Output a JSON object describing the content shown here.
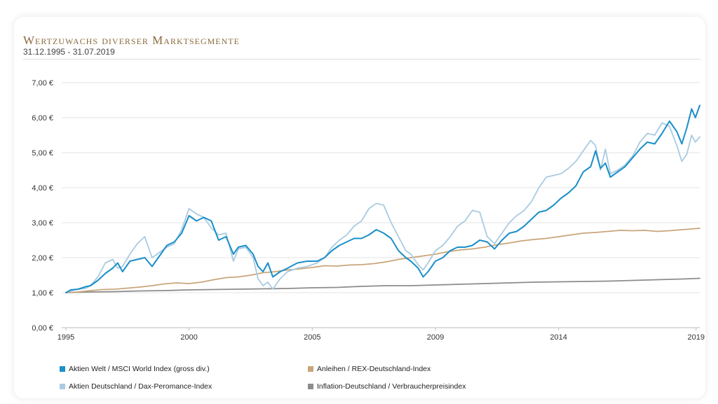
{
  "title": "Wertzuwachs diverser Marktsegmente",
  "subtitle": "31.12.1995 - 31.07.2019",
  "chart_data": {
    "type": "line",
    "x_tick_labels": [
      "1995",
      "2000",
      "2005",
      "2009",
      "2014",
      "2019"
    ],
    "x_tick_positions": [
      1996.0,
      2001.0,
      2006.0,
      2011.0,
      2016.0,
      2021.58
    ],
    "xlim": [
      1995.83,
      2021.73
    ],
    "y_tick_labels": [
      "0,00 €",
      "1,00 €",
      "2,00 €",
      "3,00 €",
      "4,00 €",
      "5,00 €",
      "6,00 €",
      "7,00 €"
    ],
    "ylim": [
      0,
      7
    ],
    "grid": true,
    "legend_position": "bottom",
    "series": [
      {
        "name": "Aktien Welt / MSCI World Index (gross div.)",
        "color": "#1a8fc9",
        "points": [
          [
            1996.0,
            1.0
          ],
          [
            1996.2,
            1.08
          ],
          [
            1996.5,
            1.1
          ],
          [
            1996.8,
            1.17
          ],
          [
            1997.0,
            1.2
          ],
          [
            1997.3,
            1.35
          ],
          [
            1997.6,
            1.55
          ],
          [
            1997.9,
            1.7
          ],
          [
            1998.1,
            1.85
          ],
          [
            1998.3,
            1.6
          ],
          [
            1998.6,
            1.9
          ],
          [
            1998.9,
            1.95
          ],
          [
            1999.2,
            2.0
          ],
          [
            1999.5,
            1.75
          ],
          [
            1999.8,
            2.05
          ],
          [
            2000.1,
            2.35
          ],
          [
            2000.4,
            2.45
          ],
          [
            2000.7,
            2.7
          ],
          [
            2001.0,
            3.2
          ],
          [
            2001.3,
            3.05
          ],
          [
            2001.6,
            3.15
          ],
          [
            2001.9,
            3.05
          ],
          [
            2002.2,
            2.5
          ],
          [
            2002.5,
            2.6
          ],
          [
            2002.8,
            2.1
          ],
          [
            2003.0,
            2.3
          ],
          [
            2003.3,
            2.35
          ],
          [
            2003.6,
            2.1
          ],
          [
            2003.8,
            1.75
          ],
          [
            2004.0,
            1.6
          ],
          [
            2004.2,
            1.85
          ],
          [
            2004.4,
            1.45
          ],
          [
            2004.7,
            1.6
          ],
          [
            2005.0,
            1.7
          ],
          [
            2005.4,
            1.85
          ],
          [
            2005.8,
            1.9
          ],
          [
            2006.2,
            1.9
          ],
          [
            2006.5,
            2.0
          ],
          [
            2006.8,
            2.2
          ],
          [
            2007.1,
            2.35
          ],
          [
            2007.4,
            2.45
          ],
          [
            2007.7,
            2.55
          ],
          [
            2008.0,
            2.55
          ],
          [
            2008.3,
            2.65
          ],
          [
            2008.6,
            2.8
          ],
          [
            2008.9,
            2.7
          ],
          [
            2009.2,
            2.55
          ],
          [
            2009.5,
            2.2
          ],
          [
            2009.8,
            2.0
          ],
          [
            2010.0,
            1.9
          ],
          [
            2010.3,
            1.7
          ],
          [
            2010.5,
            1.45
          ],
          [
            2010.7,
            1.6
          ],
          [
            2011.0,
            1.9
          ],
          [
            2011.3,
            2.0
          ],
          [
            2011.6,
            2.2
          ],
          [
            2011.9,
            2.3
          ],
          [
            2012.2,
            2.3
          ],
          [
            2012.5,
            2.35
          ],
          [
            2012.8,
            2.5
          ],
          [
            2013.1,
            2.45
          ],
          [
            2013.4,
            2.25
          ],
          [
            2013.7,
            2.5
          ],
          [
            2014.0,
            2.7
          ],
          [
            2014.3,
            2.75
          ],
          [
            2014.6,
            2.9
          ],
          [
            2014.9,
            3.1
          ],
          [
            2015.2,
            3.3
          ],
          [
            2015.5,
            3.35
          ],
          [
            2015.8,
            3.5
          ],
          [
            2016.1,
            3.7
          ],
          [
            2016.4,
            3.85
          ],
          [
            2016.7,
            4.05
          ],
          [
            2017.0,
            4.45
          ],
          [
            2017.3,
            4.6
          ],
          [
            2017.5,
            5.05
          ],
          [
            2017.7,
            4.55
          ],
          [
            2017.9,
            4.7
          ],
          [
            2018.1,
            4.3
          ],
          [
            2018.4,
            4.45
          ],
          [
            2018.7,
            4.6
          ],
          [
            2019.0,
            4.85
          ],
          [
            2019.3,
            5.1
          ],
          [
            2019.6,
            5.3
          ],
          [
            2019.9,
            5.25
          ],
          [
            2020.2,
            5.55
          ],
          [
            2020.5,
            5.9
          ],
          [
            2020.8,
            5.6
          ],
          [
            2021.0,
            5.25
          ],
          [
            2021.2,
            5.7
          ],
          [
            2021.4,
            6.25
          ],
          [
            2021.55,
            6.0
          ],
          [
            2021.73,
            6.35
          ]
        ]
      },
      {
        "name": "Aktien Deutschland / Dax-Peromance-Index",
        "color": "#a9cbe1",
        "points": [
          [
            1996.0,
            1.0
          ],
          [
            1996.2,
            1.05
          ],
          [
            1996.5,
            1.1
          ],
          [
            1996.8,
            1.12
          ],
          [
            1997.0,
            1.2
          ],
          [
            1997.3,
            1.45
          ],
          [
            1997.6,
            1.85
          ],
          [
            1997.9,
            1.95
          ],
          [
            1998.1,
            1.7
          ],
          [
            1998.3,
            1.75
          ],
          [
            1998.6,
            2.1
          ],
          [
            1998.9,
            2.4
          ],
          [
            1999.2,
            2.6
          ],
          [
            1999.5,
            2.0
          ],
          [
            1999.8,
            2.15
          ],
          [
            2000.1,
            2.3
          ],
          [
            2000.4,
            2.4
          ],
          [
            2000.7,
            2.8
          ],
          [
            2001.0,
            3.4
          ],
          [
            2001.3,
            3.25
          ],
          [
            2001.6,
            3.15
          ],
          [
            2001.9,
            2.85
          ],
          [
            2002.2,
            2.65
          ],
          [
            2002.5,
            2.7
          ],
          [
            2002.8,
            1.9
          ],
          [
            2003.0,
            2.25
          ],
          [
            2003.3,
            2.3
          ],
          [
            2003.6,
            2.0
          ],
          [
            2003.8,
            1.4
          ],
          [
            2004.0,
            1.2
          ],
          [
            2004.2,
            1.3
          ],
          [
            2004.4,
            1.1
          ],
          [
            2004.7,
            1.4
          ],
          [
            2005.0,
            1.6
          ],
          [
            2005.4,
            1.7
          ],
          [
            2005.8,
            1.75
          ],
          [
            2006.2,
            1.85
          ],
          [
            2006.5,
            2.0
          ],
          [
            2006.8,
            2.3
          ],
          [
            2007.1,
            2.5
          ],
          [
            2007.4,
            2.65
          ],
          [
            2007.7,
            2.9
          ],
          [
            2008.0,
            3.05
          ],
          [
            2008.3,
            3.4
          ],
          [
            2008.6,
            3.55
          ],
          [
            2008.9,
            3.5
          ],
          [
            2009.2,
            3.0
          ],
          [
            2009.5,
            2.6
          ],
          [
            2009.8,
            2.2
          ],
          [
            2010.0,
            2.1
          ],
          [
            2010.3,
            1.8
          ],
          [
            2010.5,
            1.65
          ],
          [
            2010.7,
            1.85
          ],
          [
            2011.0,
            2.2
          ],
          [
            2011.3,
            2.35
          ],
          [
            2011.6,
            2.6
          ],
          [
            2011.9,
            2.9
          ],
          [
            2012.2,
            3.05
          ],
          [
            2012.5,
            3.35
          ],
          [
            2012.8,
            3.3
          ],
          [
            2013.1,
            2.6
          ],
          [
            2013.4,
            2.4
          ],
          [
            2013.7,
            2.7
          ],
          [
            2014.0,
            3.0
          ],
          [
            2014.3,
            3.2
          ],
          [
            2014.6,
            3.35
          ],
          [
            2014.9,
            3.6
          ],
          [
            2015.2,
            4.0
          ],
          [
            2015.5,
            4.3
          ],
          [
            2015.8,
            4.35
          ],
          [
            2016.1,
            4.4
          ],
          [
            2016.4,
            4.55
          ],
          [
            2016.7,
            4.75
          ],
          [
            2017.0,
            5.05
          ],
          [
            2017.3,
            5.35
          ],
          [
            2017.5,
            5.2
          ],
          [
            2017.7,
            4.5
          ],
          [
            2017.9,
            5.1
          ],
          [
            2018.1,
            4.4
          ],
          [
            2018.4,
            4.5
          ],
          [
            2018.7,
            4.65
          ],
          [
            2019.0,
            4.9
          ],
          [
            2019.3,
            5.3
          ],
          [
            2019.6,
            5.55
          ],
          [
            2019.9,
            5.5
          ],
          [
            2020.2,
            5.85
          ],
          [
            2020.5,
            5.75
          ],
          [
            2020.8,
            5.2
          ],
          [
            2021.0,
            4.75
          ],
          [
            2021.2,
            4.95
          ],
          [
            2021.4,
            5.5
          ],
          [
            2021.55,
            5.3
          ],
          [
            2021.73,
            5.45
          ]
        ]
      },
      {
        "name": "Anleihen / REX-Deutschland-Index",
        "color": "#c9a57a",
        "points": [
          [
            1996.0,
            1.0
          ],
          [
            1996.5,
            1.02
          ],
          [
            1997.0,
            1.06
          ],
          [
            1997.5,
            1.09
          ],
          [
            1998.0,
            1.1
          ],
          [
            1998.5,
            1.13
          ],
          [
            1999.0,
            1.16
          ],
          [
            1999.5,
            1.2
          ],
          [
            2000.0,
            1.25
          ],
          [
            2000.5,
            1.28
          ],
          [
            2001.0,
            1.26
          ],
          [
            2001.5,
            1.3
          ],
          [
            2002.0,
            1.37
          ],
          [
            2002.5,
            1.43
          ],
          [
            2003.0,
            1.45
          ],
          [
            2003.5,
            1.5
          ],
          [
            2004.0,
            1.57
          ],
          [
            2004.5,
            1.6
          ],
          [
            2005.0,
            1.65
          ],
          [
            2005.5,
            1.68
          ],
          [
            2006.0,
            1.72
          ],
          [
            2006.5,
            1.77
          ],
          [
            2007.0,
            1.76
          ],
          [
            2007.5,
            1.79
          ],
          [
            2008.0,
            1.8
          ],
          [
            2008.5,
            1.83
          ],
          [
            2009.0,
            1.88
          ],
          [
            2009.5,
            1.95
          ],
          [
            2010.0,
            2.0
          ],
          [
            2010.5,
            2.05
          ],
          [
            2011.0,
            2.1
          ],
          [
            2011.5,
            2.17
          ],
          [
            2012.0,
            2.22
          ],
          [
            2012.5,
            2.25
          ],
          [
            2013.0,
            2.3
          ],
          [
            2013.5,
            2.37
          ],
          [
            2014.0,
            2.42
          ],
          [
            2014.5,
            2.48
          ],
          [
            2015.0,
            2.52
          ],
          [
            2015.5,
            2.55
          ],
          [
            2016.0,
            2.6
          ],
          [
            2016.5,
            2.65
          ],
          [
            2017.0,
            2.7
          ],
          [
            2017.5,
            2.72
          ],
          [
            2018.0,
            2.75
          ],
          [
            2018.5,
            2.78
          ],
          [
            2019.0,
            2.77
          ],
          [
            2019.5,
            2.78
          ],
          [
            2020.0,
            2.75
          ],
          [
            2020.5,
            2.77
          ],
          [
            2021.0,
            2.8
          ],
          [
            2021.4,
            2.82
          ],
          [
            2021.73,
            2.84
          ]
        ]
      },
      {
        "name": "Inflation-Deutschland / Verbraucherpreisindex",
        "color": "#8c8c8c",
        "points": [
          [
            1996.0,
            1.0
          ],
          [
            1997.0,
            1.02
          ],
          [
            1998.0,
            1.03
          ],
          [
            1999.0,
            1.05
          ],
          [
            2000.0,
            1.06
          ],
          [
            2001.0,
            1.08
          ],
          [
            2002.0,
            1.09
          ],
          [
            2003.0,
            1.1
          ],
          [
            2004.0,
            1.11
          ],
          [
            2005.0,
            1.12
          ],
          [
            2006.0,
            1.14
          ],
          [
            2007.0,
            1.15
          ],
          [
            2008.0,
            1.18
          ],
          [
            2009.0,
            1.2
          ],
          [
            2010.0,
            1.2
          ],
          [
            2011.0,
            1.22
          ],
          [
            2012.0,
            1.24
          ],
          [
            2013.0,
            1.26
          ],
          [
            2014.0,
            1.28
          ],
          [
            2015.0,
            1.3
          ],
          [
            2016.0,
            1.31
          ],
          [
            2017.0,
            1.32
          ],
          [
            2018.0,
            1.33
          ],
          [
            2019.0,
            1.35
          ],
          [
            2020.0,
            1.37
          ],
          [
            2021.0,
            1.39
          ],
          [
            2021.73,
            1.41
          ]
        ]
      }
    ]
  }
}
